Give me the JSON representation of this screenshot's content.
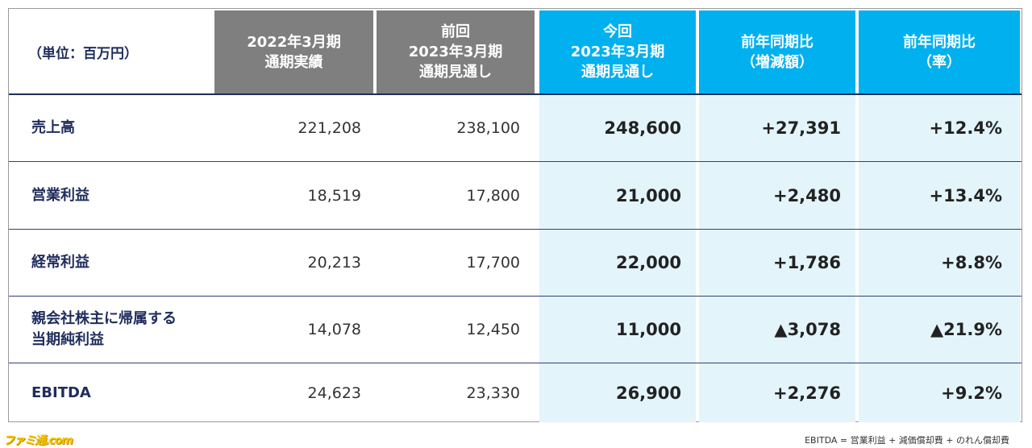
{
  "table": {
    "unit_label": "（単位：百万円）",
    "headers": [
      {
        "lines": [
          "2022年3月期",
          "通期実績"
        ]
      },
      {
        "lines": [
          "前回",
          "2023年3月期",
          "通期見通し"
        ]
      },
      {
        "lines": [
          "今回",
          "2023年3月期",
          "通期見通し"
        ]
      },
      {
        "lines": [
          "前年同期比",
          "（増減額）"
        ]
      },
      {
        "lines": [
          "前年同期比",
          "（率）"
        ]
      }
    ],
    "rows": [
      {
        "label": [
          "売上高"
        ],
        "values": [
          "221,208",
          "238,100",
          "248,600",
          "+27,391",
          "+12.4%"
        ]
      },
      {
        "label": [
          "営業利益"
        ],
        "values": [
          "18,519",
          "17,800",
          "21,000",
          "+2,480",
          "+13.4%"
        ]
      },
      {
        "label": [
          "経常利益"
        ],
        "values": [
          "20,213",
          "17,700",
          "22,000",
          "+1,786",
          "+8.8%"
        ]
      },
      {
        "label": [
          "親会社株主に帰属する",
          "当期純利益"
        ],
        "values": [
          "14,078",
          "12,450",
          "11,000",
          "▲3,078",
          "▲21.9%"
        ]
      },
      {
        "label": [
          "EBITDA"
        ],
        "values": [
          "24,623",
          "23,330",
          "26,900",
          "+2,276",
          "+9.2%"
        ]
      }
    ]
  },
  "footnote": "EBITDA = 営業利益 + 減価償却費 + のれん償却費",
  "watermark": "ファミ通.com",
  "colors": {
    "gray_header": "#7f7f7f",
    "blue_header": "#00b0ef",
    "light_blue": "#e3f4fb",
    "navy": "#1f2d5c"
  }
}
